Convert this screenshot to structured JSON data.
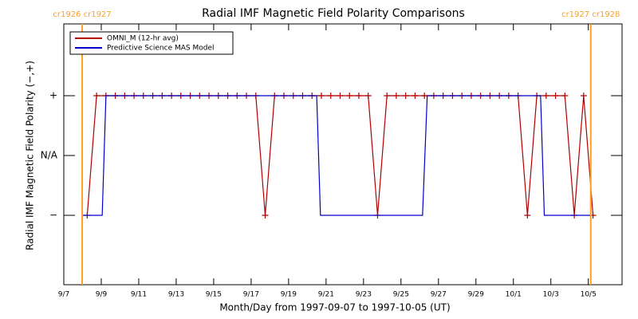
{
  "chart_data": {
    "type": "line",
    "title": "Radial IMF Magnetic Field Polarity Comparisons",
    "xlabel": "Month/Day from 1997-09-07 to 1997-10-05 (UT)",
    "ylabel": "Radial IMF Magnetic Field Polarity (−,+)",
    "xlim": [
      0,
      29.8
    ],
    "ylim": [
      -2.16,
      2.2
    ],
    "xticks": [
      {
        "value": 0,
        "label": "9/7"
      },
      {
        "value": 2,
        "label": "9/9"
      },
      {
        "value": 4,
        "label": "9/11"
      },
      {
        "value": 6,
        "label": "9/13"
      },
      {
        "value": 8,
        "label": "9/15"
      },
      {
        "value": 10,
        "label": "9/17"
      },
      {
        "value": 12,
        "label": "9/19"
      },
      {
        "value": 14,
        "label": "9/21"
      },
      {
        "value": 16,
        "label": "9/23"
      },
      {
        "value": 18,
        "label": "9/25"
      },
      {
        "value": 20,
        "label": "9/27"
      },
      {
        "value": 22,
        "label": "9/29"
      },
      {
        "value": 24,
        "label": "10/1"
      },
      {
        "value": 26,
        "label": "10/3"
      },
      {
        "value": 28,
        "label": "10/5"
      }
    ],
    "yticks": [
      {
        "value": -1,
        "label": "−"
      },
      {
        "value": 0,
        "label": "N/A"
      },
      {
        "value": 1,
        "label": "+"
      }
    ],
    "legend": "upper left",
    "series": [
      {
        "name": "OMNI_M (12-hr avg)",
        "color": "#b00000",
        "marker": "+",
        "x": [
          1.25,
          1.75,
          2.25,
          2.75,
          3.25,
          3.75,
          4.25,
          4.75,
          5.25,
          5.75,
          6.25,
          6.75,
          7.25,
          7.75,
          8.25,
          8.75,
          9.25,
          9.75,
          10.25,
          10.75,
          11.25,
          11.75,
          12.25,
          12.75,
          13.25,
          13.75,
          14.25,
          14.75,
          15.25,
          15.75,
          16.25,
          16.75,
          17.25,
          17.75,
          18.25,
          18.75,
          19.25,
          19.75,
          20.25,
          20.75,
          21.25,
          21.75,
          22.25,
          22.75,
          23.25,
          23.75,
          24.25,
          24.75,
          25.25,
          25.75,
          26.25,
          26.75,
          27.25,
          27.75,
          28.25
        ],
        "values": [
          -1,
          1,
          1,
          1,
          1,
          1,
          1,
          1,
          1,
          1,
          1,
          1,
          1,
          1,
          1,
          1,
          1,
          1,
          1,
          -1,
          1,
          1,
          1,
          1,
          1,
          1,
          1,
          1,
          1,
          1,
          1,
          -1,
          1,
          1,
          1,
          1,
          1,
          1,
          1,
          1,
          1,
          1,
          1,
          1,
          1,
          1,
          1,
          -1,
          1,
          1,
          1,
          1,
          -1,
          1,
          -1
        ]
      },
      {
        "name": "Predictive Science MAS Model",
        "color": "#0000c8",
        "x": [
          1.0,
          2.05,
          2.25,
          13.5,
          13.7,
          19.15,
          19.4,
          25.45,
          25.65,
          28.1
        ],
        "values": [
          -1,
          -1,
          1,
          1,
          -1,
          -1,
          1,
          1,
          -1,
          -1
        ]
      }
    ],
    "vlines": [
      {
        "x": 0.98,
        "label": "cr1926 cr1927",
        "color": "#ffa020"
      },
      {
        "x": 28.13,
        "label": "cr1927 cr1928",
        "color": "#ffa020"
      }
    ]
  }
}
